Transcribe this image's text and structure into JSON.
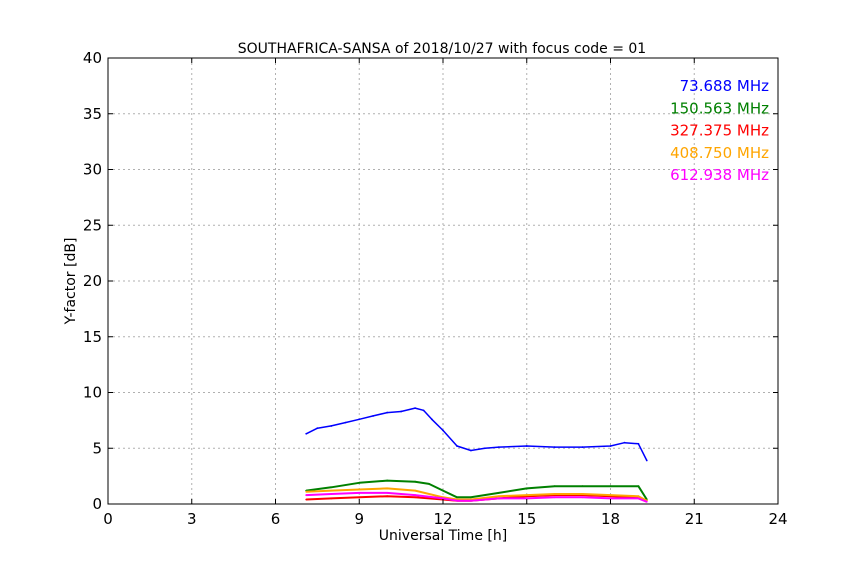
{
  "chart_data": {
    "type": "line",
    "title": "SOUTHAFRICA-SANSA of 2018/10/27 with focus code = 01",
    "xlabel": "Universal Time [h]",
    "ylabel": "Y-factor [dB]",
    "xlim": [
      0,
      24
    ],
    "ylim": [
      0,
      40
    ],
    "xticks": [
      0,
      3,
      6,
      9,
      12,
      15,
      18,
      21,
      24
    ],
    "yticks": [
      0,
      5,
      10,
      15,
      20,
      25,
      30,
      35,
      40
    ],
    "grid": true,
    "legend_position": "top-right",
    "series": [
      {
        "name": "73.688 MHz",
        "color": "#0000ff",
        "x": [
          7.1,
          7.5,
          8.0,
          8.5,
          9.0,
          9.5,
          10.0,
          10.5,
          11.0,
          11.3,
          11.6,
          12.0,
          12.5,
          13.0,
          13.5,
          14.0,
          15.0,
          16.0,
          17.0,
          18.0,
          18.5,
          19.0,
          19.3
        ],
        "y": [
          6.3,
          6.8,
          7.0,
          7.3,
          7.6,
          7.9,
          8.2,
          8.3,
          8.6,
          8.4,
          7.6,
          6.6,
          5.2,
          4.8,
          5.0,
          5.1,
          5.2,
          5.1,
          5.1,
          5.2,
          5.5,
          5.4,
          3.9
        ]
      },
      {
        "name": "150.563 MHz",
        "color": "#008000",
        "x": [
          7.1,
          8.0,
          9.0,
          10.0,
          11.0,
          11.5,
          12.0,
          12.5,
          13.0,
          14.0,
          15.0,
          16.0,
          17.0,
          18.0,
          19.0,
          19.3
        ],
        "y": [
          1.2,
          1.5,
          1.9,
          2.1,
          2.0,
          1.8,
          1.2,
          0.6,
          0.6,
          1.0,
          1.4,
          1.6,
          1.6,
          1.6,
          1.6,
          0.4
        ]
      },
      {
        "name": "327.375 MHz",
        "color": "#ff0000",
        "x": [
          7.1,
          8.0,
          9.0,
          10.0,
          11.0,
          12.0,
          12.5,
          13.0,
          14.0,
          15.0,
          16.0,
          17.0,
          18.0,
          19.0,
          19.3
        ],
        "y": [
          0.4,
          0.5,
          0.6,
          0.7,
          0.6,
          0.4,
          0.3,
          0.3,
          0.5,
          0.7,
          0.8,
          0.8,
          0.7,
          0.6,
          0.3
        ]
      },
      {
        "name": "408.750 MHz",
        "color": "#ffa500",
        "x": [
          7.1,
          8.0,
          9.0,
          10.0,
          11.0,
          12.0,
          12.5,
          13.0,
          14.0,
          15.0,
          16.0,
          17.0,
          18.0,
          19.0,
          19.3
        ],
        "y": [
          1.1,
          1.2,
          1.3,
          1.4,
          1.2,
          0.6,
          0.4,
          0.4,
          0.7,
          0.8,
          0.9,
          0.9,
          0.8,
          0.7,
          0.3
        ]
      },
      {
        "name": "612.938 MHz",
        "color": "#ff00ff",
        "x": [
          7.1,
          8.0,
          9.0,
          10.0,
          11.0,
          12.0,
          12.5,
          13.0,
          14.0,
          15.0,
          16.0,
          17.0,
          18.0,
          19.0,
          19.3
        ],
        "y": [
          0.8,
          0.9,
          1.0,
          1.0,
          0.8,
          0.5,
          0.3,
          0.3,
          0.5,
          0.5,
          0.6,
          0.6,
          0.5,
          0.5,
          0.2
        ]
      }
    ]
  }
}
